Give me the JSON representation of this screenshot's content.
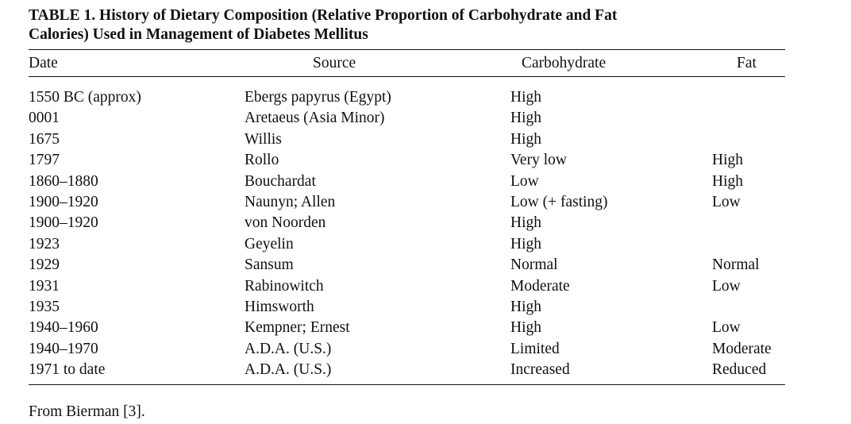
{
  "table": {
    "title_line1": "TABLE 1. History of Dietary Composition (Relative Proportion of Carbohydrate and Fat",
    "title_line2": "Calories) Used in Management of Diabetes Mellitus",
    "headers": [
      "Date",
      "Source",
      "Carbohydrate",
      "Fat"
    ],
    "rows": [
      [
        "1550 BC (approx)",
        "Ebergs papyrus (Egypt)",
        "High",
        ""
      ],
      [
        "0001",
        "Aretaeus (Asia Minor)",
        "High",
        ""
      ],
      [
        "1675",
        "Willis",
        "High",
        ""
      ],
      [
        "1797",
        "Rollo",
        "Very low",
        "High"
      ],
      [
        "1860–1880",
        "Bouchardat",
        "Low",
        "High"
      ],
      [
        "1900–1920",
        "Naunyn; Allen",
        "Low (+ fasting)",
        "Low"
      ],
      [
        "1900–1920",
        "von Noorden",
        "High",
        ""
      ],
      [
        "1923",
        "Geyelin",
        "High",
        ""
      ],
      [
        "1929",
        "Sansum",
        "Normal",
        "Normal"
      ],
      [
        "1931",
        "Rabinowitch",
        "Moderate",
        "Low"
      ],
      [
        "1935",
        "Himsworth",
        "High",
        ""
      ],
      [
        "1940–1960",
        "Kempner; Ernest",
        "High",
        "Low"
      ],
      [
        "1940–1970",
        "A.D.A. (U.S.)",
        "Limited",
        "Moderate"
      ],
      [
        "1971 to date",
        "A.D.A. (U.S.)",
        "Increased",
        "Reduced"
      ]
    ],
    "footnote": "From Bierman [3]."
  }
}
